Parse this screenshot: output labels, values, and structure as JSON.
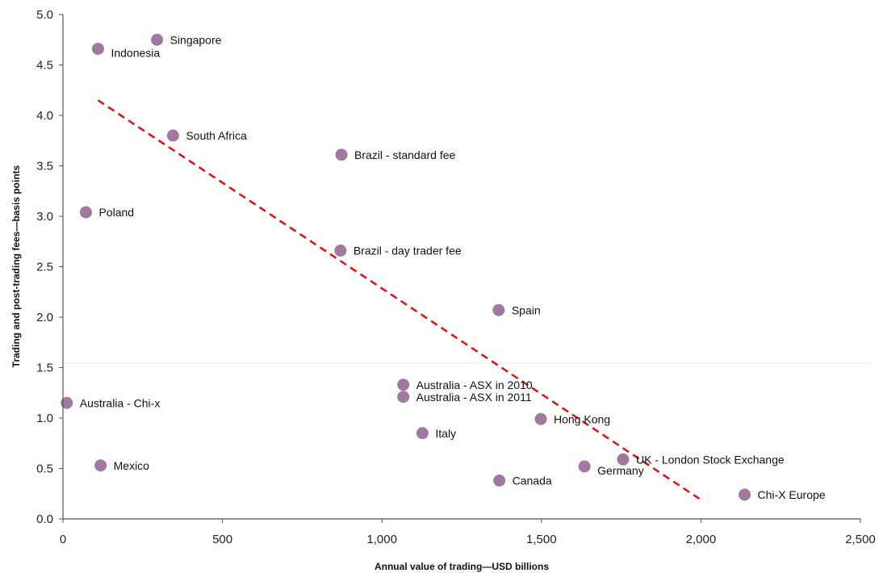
{
  "chart_data": {
    "type": "scatter",
    "title": "",
    "xlabel": "Annual value of trading—USD billions",
    "ylabel": "Trading and post-trading fees—basis points",
    "xlim": [
      0,
      2500
    ],
    "ylim": [
      0,
      5.0
    ],
    "x_ticks": [
      0,
      500,
      1000,
      1500,
      2000,
      2500
    ],
    "x_tick_labels": [
      "0",
      "500",
      "1,000",
      "1,500",
      "2,000",
      "2,500"
    ],
    "y_ticks": [
      0,
      0.5,
      1.0,
      1.5,
      2.0,
      2.5,
      3.0,
      3.5,
      4.0,
      4.5,
      5.0
    ],
    "y_tick_labels": [
      "0.0",
      "0.5",
      "1.0",
      "1.5",
      "2.0",
      "2.5",
      "3.0",
      "3.5",
      "4.0",
      "4.5",
      "5.0"
    ],
    "grid": false,
    "point_color": "#a07a9e",
    "trendline_color": "#e01010",
    "trendline": {
      "style": "dashed",
      "from": [
        110,
        4.15
      ],
      "to": [
        1995,
        0.2
      ]
    },
    "points": [
      {
        "label": "Singapore",
        "x": 295,
        "y": 4.75,
        "label_pos": "right"
      },
      {
        "label": "Indonesia",
        "x": 110,
        "y": 4.66,
        "label_pos": "right-below"
      },
      {
        "label": "South Africa",
        "x": 345,
        "y": 3.8,
        "label_pos": "right"
      },
      {
        "label": "Brazil - standard fee",
        "x": 873,
        "y": 3.61,
        "label_pos": "right"
      },
      {
        "label": "Poland",
        "x": 72,
        "y": 3.04,
        "label_pos": "right"
      },
      {
        "label": "Brazil - day trader fee",
        "x": 870,
        "y": 2.66,
        "label_pos": "right"
      },
      {
        "label": "Spain",
        "x": 1366,
        "y": 2.07,
        "label_pos": "right"
      },
      {
        "label": "Australia - ASX in 2010",
        "x": 1067,
        "y": 1.33,
        "label_pos": "right"
      },
      {
        "label": "Australia - ASX in 2011",
        "x": 1067,
        "y": 1.21,
        "label_pos": "right"
      },
      {
        "label": "Australia - Chi-x",
        "x": 12,
        "y": 1.15,
        "label_pos": "right"
      },
      {
        "label": "Hong Kong",
        "x": 1498,
        "y": 0.99,
        "label_pos": "right"
      },
      {
        "label": "Italy",
        "x": 1127,
        "y": 0.85,
        "label_pos": "right"
      },
      {
        "label": "UK - London Stock Exchange",
        "x": 1756,
        "y": 0.59,
        "label_pos": "right"
      },
      {
        "label": "Mexico",
        "x": 118,
        "y": 0.53,
        "label_pos": "right"
      },
      {
        "label": "Germany",
        "x": 1635,
        "y": 0.52,
        "label_pos": "right-below"
      },
      {
        "label": "Canada",
        "x": 1368,
        "y": 0.38,
        "label_pos": "right"
      },
      {
        "label": "Chi-X Europe",
        "x": 2137,
        "y": 0.24,
        "label_pos": "right"
      }
    ]
  }
}
